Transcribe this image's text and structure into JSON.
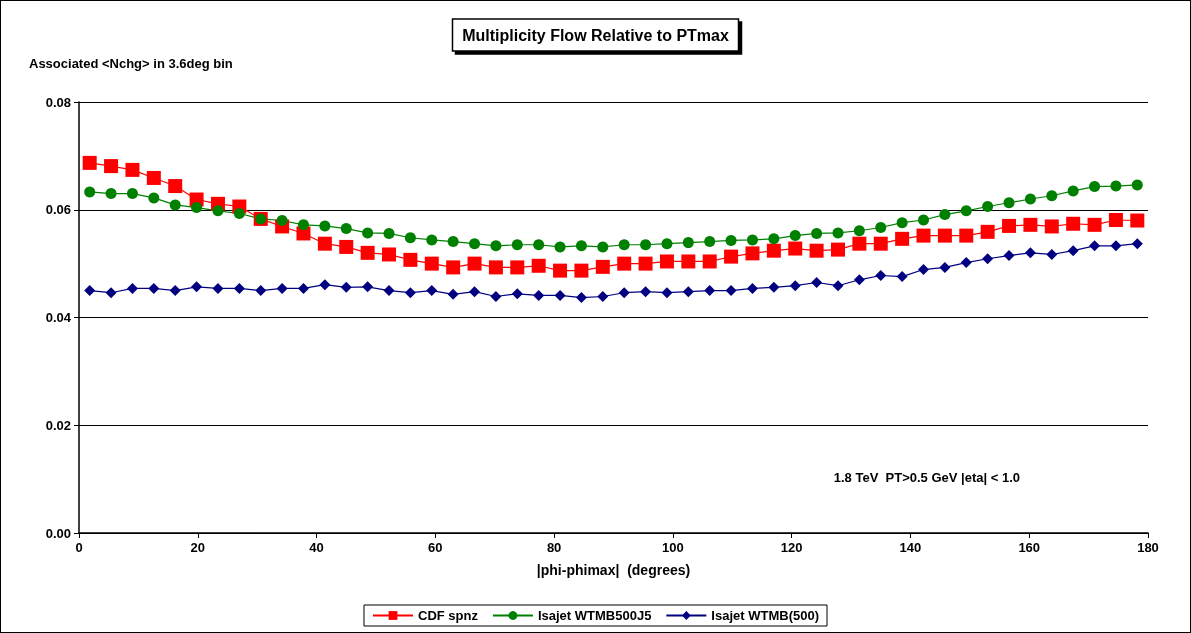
{
  "chart_data": {
    "type": "line",
    "title": "Multiplicity Flow Relative to PTmax",
    "ylabel": "Associated <Nchg> in 3.6deg bin",
    "xlabel": "|phi-phimax|  (degrees)",
    "annotations": [
      "1.8 TeV  PT>0.5 GeV |eta| < 1.0"
    ],
    "x": [
      1.8,
      5.4,
      9,
      12.6,
      16.2,
      19.8,
      23.4,
      27,
      30.6,
      34.2,
      37.8,
      41.4,
      45,
      48.6,
      52.2,
      55.8,
      59.4,
      63,
      66.6,
      70.2,
      73.8,
      77.4,
      81,
      84.6,
      88.2,
      91.8,
      95.4,
      99,
      102.6,
      106.2,
      109.8,
      113.4,
      117,
      120.6,
      124.2,
      127.8,
      131.4,
      135,
      138.6,
      142.2,
      145.8,
      149.4,
      153,
      156.6,
      160.2,
      163.8,
      167.4,
      171,
      174.6,
      178.2
    ],
    "series": [
      {
        "name": "CDF spnz",
        "color": "#ff0000",
        "marker": "square",
        "values": [
          0.0687,
          0.0681,
          0.0674,
          0.0659,
          0.0644,
          0.0619,
          0.0611,
          0.0606,
          0.0583,
          0.0569,
          0.0556,
          0.0537,
          0.0531,
          0.052,
          0.0517,
          0.0507,
          0.05,
          0.0493,
          0.05,
          0.0493,
          0.0493,
          0.0496,
          0.0487,
          0.0487,
          0.0494,
          0.05,
          0.05,
          0.0504,
          0.0504,
          0.0504,
          0.0513,
          0.0519,
          0.0524,
          0.0528,
          0.0524,
          0.0526,
          0.0537,
          0.0537,
          0.0546,
          0.0552,
          0.0552,
          0.0552,
          0.0559,
          0.057,
          0.0572,
          0.0569,
          0.0574,
          0.0572,
          0.0581,
          0.058
        ]
      },
      {
        "name": "Isajet WTMB500J5",
        "color": "#008000",
        "marker": "circle",
        "values": [
          0.0633,
          0.063,
          0.063,
          0.0622,
          0.0609,
          0.0604,
          0.0598,
          0.0593,
          0.0583,
          0.058,
          0.0572,
          0.057,
          0.0565,
          0.0557,
          0.0556,
          0.0548,
          0.0544,
          0.0541,
          0.0537,
          0.0533,
          0.0535,
          0.0535,
          0.0531,
          0.0533,
          0.0531,
          0.0535,
          0.0535,
          0.0537,
          0.0539,
          0.0541,
          0.0543,
          0.0544,
          0.0546,
          0.0552,
          0.0556,
          0.0557,
          0.0561,
          0.0567,
          0.0576,
          0.0581,
          0.0591,
          0.0598,
          0.0606,
          0.0613,
          0.062,
          0.0626,
          0.0635,
          0.0643,
          0.0644,
          0.0646
        ]
      },
      {
        "name": "Isajet WTMB(500)",
        "color": "#000080",
        "marker": "diamond",
        "values": [
          0.045,
          0.0446,
          0.0454,
          0.0454,
          0.045,
          0.0457,
          0.0454,
          0.0454,
          0.045,
          0.0454,
          0.0454,
          0.0461,
          0.0456,
          0.0457,
          0.045,
          0.0446,
          0.045,
          0.0443,
          0.0448,
          0.0439,
          0.0444,
          0.0441,
          0.0441,
          0.0437,
          0.0439,
          0.0446,
          0.0448,
          0.0446,
          0.0448,
          0.045,
          0.045,
          0.0454,
          0.0456,
          0.0459,
          0.0465,
          0.0459,
          0.047,
          0.0478,
          0.0476,
          0.0489,
          0.0493,
          0.0502,
          0.0509,
          0.0515,
          0.052,
          0.0517,
          0.0524,
          0.0533,
          0.0533,
          0.0537
        ]
      }
    ],
    "xlim": [
      0,
      180
    ],
    "xticks": [
      0,
      20,
      40,
      60,
      80,
      100,
      120,
      140,
      160,
      180
    ],
    "ylim": [
      0,
      0.08
    ],
    "yticks": [
      {
        "value": 0,
        "label": "0.00"
      },
      {
        "value": 0.02,
        "label": "0.02"
      },
      {
        "value": 0.04,
        "label": "0.04"
      },
      {
        "value": 0.06,
        "label": "0.06"
      },
      {
        "value": 0.08,
        "label": "0.08"
      }
    ],
    "grid": "y",
    "legend": "bottom",
    "line_style": "solid"
  }
}
